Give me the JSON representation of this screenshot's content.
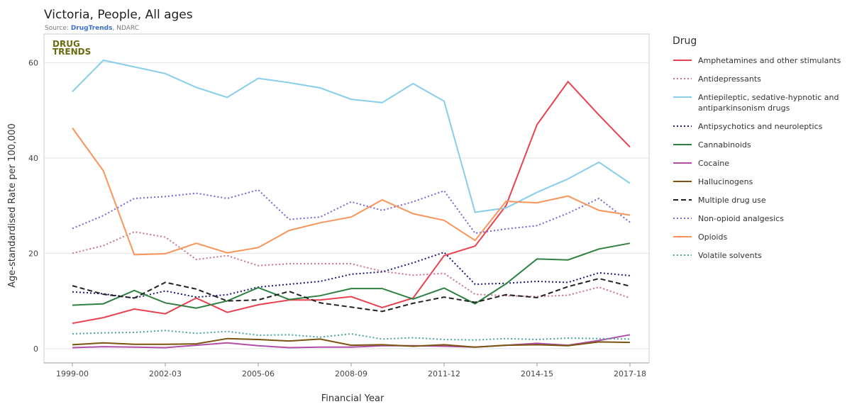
{
  "chart_data": {
    "type": "line",
    "title": "Victoria, People, All ages",
    "source": {
      "prefix": "Source:",
      "link": "DrugTrends",
      "rest": ", NDARC"
    },
    "logo": [
      "DRUG",
      "TRENDS"
    ],
    "x_label": "Financial Year",
    "y_label": "Age-standardised Rate per 100,000",
    "legend_title": "Drug",
    "legend_position": "right",
    "grid": true,
    "categories": [
      "1999-00",
      null,
      null,
      "2002-03",
      null,
      null,
      "2005-06",
      null,
      null,
      "2008-09",
      null,
      null,
      "2011-12",
      null,
      null,
      "2014-15",
      null,
      null,
      "2017-18"
    ],
    "ylim": [
      -3,
      66
    ],
    "yticks": [
      0,
      20,
      40,
      60
    ],
    "series": [
      {
        "name": "Amphetamines and other stimulants",
        "color": "#e8414f",
        "dash": "solid",
        "values": [
          5.3,
          6.5,
          8.3,
          7.3,
          10.6,
          7.6,
          9.2,
          10.2,
          10.2,
          10.9,
          8.6,
          10.6,
          19.5,
          21.5,
          30,
          47,
          56,
          49,
          42.3
        ]
      },
      {
        "name": "Antidepressants",
        "color": "#cf6f8a",
        "dash": "dot",
        "values": [
          20,
          21.6,
          24.5,
          23.4,
          18.7,
          19.5,
          17.4,
          17.8,
          17.8,
          17.8,
          16.2,
          15.4,
          15.8,
          11.4,
          11.1,
          10.9,
          11.2,
          12.9,
          10.6
        ]
      },
      {
        "name": "Antiepileptic, sedative-hypnotic and antiparkinsonism drugs",
        "color": "#87ceeb",
        "dash": "solid",
        "values": [
          53.9,
          60.5,
          59.1,
          57.7,
          54.8,
          52.7,
          56.7,
          55.8,
          54.7,
          52.3,
          51.6,
          55.6,
          51.9,
          28.6,
          29.5,
          32.8,
          35.6,
          39.1,
          34.7
        ]
      },
      {
        "name": "Antipsychotics and neuroleptics",
        "color": "#1a1a7a",
        "dash": "dot",
        "values": [
          11.9,
          11.5,
          10.6,
          12.1,
          10.8,
          11.3,
          12.9,
          13.5,
          14.1,
          15.6,
          16.1,
          18,
          20.2,
          13.5,
          13.7,
          14.1,
          13.9,
          15.9,
          15.3
        ]
      },
      {
        "name": "Cannabinoids",
        "color": "#2e8040",
        "dash": "solid",
        "values": [
          9.1,
          9.4,
          12.2,
          9.6,
          8.5,
          10,
          12.8,
          10.3,
          11.1,
          12.6,
          12.6,
          10.4,
          12.7,
          9.4,
          13.6,
          18.8,
          18.6,
          20.9,
          22.1
        ]
      },
      {
        "name": "Cocaine",
        "color": "#b04fa8",
        "dash": "solid",
        "values": [
          0.2,
          0.4,
          0.3,
          0.2,
          0.7,
          1.2,
          0.6,
          0.2,
          0.3,
          0.3,
          0.6,
          0.6,
          0.5,
          0.3,
          0.7,
          1.1,
          0.7,
          1.7,
          2.9
        ]
      },
      {
        "name": "Hallucinogens",
        "color": "#7a5410",
        "dash": "solid",
        "values": [
          0.8,
          1.2,
          0.9,
          0.9,
          1,
          2.1,
          1.9,
          1.6,
          2,
          0.7,
          0.8,
          0.5,
          0.8,
          0.3,
          0.7,
          0.8,
          0.6,
          1.4,
          1.3
        ]
      },
      {
        "name": "Multiple drug use",
        "color": "#222222",
        "dash": "dash",
        "values": [
          13.2,
          11.4,
          10.6,
          13.9,
          12.5,
          10,
          10.2,
          12,
          9.6,
          8.7,
          7.8,
          9.5,
          10.8,
          9.7,
          11.3,
          10.7,
          13,
          14.7,
          13.1
        ]
      },
      {
        "name": "Non-opioid analgesics",
        "color": "#7a62d8",
        "dash": "dot",
        "values": [
          25.2,
          27.9,
          31.5,
          31.9,
          32.6,
          31.5,
          33.3,
          27.1,
          27.6,
          30.8,
          29,
          30.8,
          33.1,
          24.2,
          25.1,
          25.8,
          28.4,
          31.5,
          26.5
        ]
      },
      {
        "name": "Opioids",
        "color": "#f9955a",
        "dash": "solid",
        "values": [
          46.3,
          37.3,
          19.7,
          19.9,
          22.1,
          20.1,
          21.2,
          24.8,
          26.4,
          27.6,
          31.2,
          28.3,
          26.9,
          22.7,
          30.9,
          30.6,
          32,
          29,
          28
        ]
      },
      {
        "name": "Volatile solvents",
        "color": "#4aa6a0",
        "dash": "dot",
        "values": [
          3.1,
          3.3,
          3.4,
          3.8,
          3.2,
          3.6,
          2.8,
          2.9,
          2.4,
          3.1,
          2,
          2.3,
          1.9,
          1.8,
          2.1,
          1.9,
          2.2,
          2.1,
          2.0
        ]
      }
    ]
  }
}
